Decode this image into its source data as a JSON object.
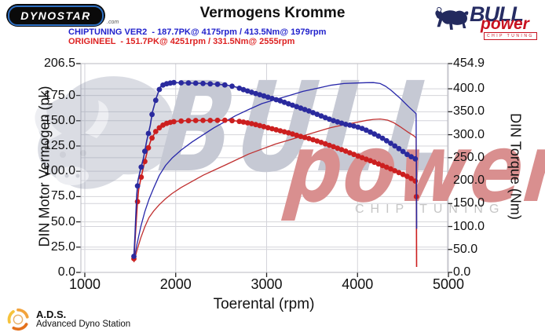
{
  "header": {
    "logo_text": "DYNOSTAR",
    "logo_suffix": ".com",
    "title": "Vermogens Kromme",
    "tuned_line": "CHIPTUNING VER2  - 187.7PK@ 4175rpm / 413.5Nm@ 1979rpm",
    "stock_line": "ORIGINEEL  - 151.7PK@ 4251rpm / 331.5Nm@ 2555rpm",
    "brand": {
      "name": "BULL",
      "sub": "power",
      "tagline": "CHIP TUNING"
    }
  },
  "watermark": {
    "word1": "BULL",
    "word2": "power",
    "word3": "CHIP TUNING"
  },
  "footer": {
    "abbr": "A.D.S.",
    "name": "Advanced Dyno Station"
  },
  "colors": {
    "header_blue": "#2222cc",
    "header_red": "#dd2222",
    "curve_blue": "#2a2a9e",
    "curve_red": "#cc1f1f",
    "grid": "#d4d4da",
    "plot_border": "#b8b8c0",
    "tick": "#222222"
  },
  "peaks": {
    "chiptuning": {
      "pk": 187.7,
      "pk_rpm": 4175,
      "nm": 413.5,
      "nm_rpm": 1979
    },
    "origineel": {
      "pk": 151.7,
      "pk_rpm": 4251,
      "nm": 331.5,
      "nm_rpm": 2555
    }
  },
  "chart_data": {
    "type": "line",
    "title": "Vermogens Kromme",
    "x_axis": {
      "label": "Toerental (rpm)",
      "ticks": [
        1000,
        2000,
        3000,
        4000,
        5000
      ],
      "min": 957,
      "max": 4991
    },
    "left_axis": {
      "label": "DIN Motor Vermogen (pk)",
      "ticks": [
        0.0,
        25.0,
        50.0,
        75.0,
        100.0,
        125.0,
        150.0,
        175.0,
        206.5
      ],
      "min": 0,
      "max": 206.5
    },
    "right_axis": {
      "label": "DIN Torque (Nm)",
      "ticks": [
        0.0,
        50.0,
        100.0,
        150.0,
        200.0,
        250.0,
        300.0,
        350.0,
        400.0,
        454.9
      ],
      "min": 0,
      "max": 454.9
    },
    "grid": true,
    "series": [
      {
        "name": "origineel_power",
        "axis": "left",
        "color": "#c03030",
        "width": 1.3,
        "markers": false,
        "points": [
          [
            1540,
            10
          ],
          [
            1575,
            22
          ],
          [
            1615,
            34
          ],
          [
            1660,
            45
          ],
          [
            1705,
            54
          ],
          [
            1760,
            61
          ],
          [
            1820,
            67
          ],
          [
            1890,
            73
          ],
          [
            1960,
            78
          ],
          [
            2060,
            84
          ],
          [
            2180,
            90
          ],
          [
            2300,
            96
          ],
          [
            2420,
            101
          ],
          [
            2540,
            106
          ],
          [
            2660,
            111
          ],
          [
            2800,
            117
          ],
          [
            2950,
            122
          ],
          [
            3100,
            127
          ],
          [
            3250,
            131
          ],
          [
            3400,
            135
          ],
          [
            3550,
            139
          ],
          [
            3700,
            143
          ],
          [
            3850,
            146
          ],
          [
            4000,
            148.6
          ],
          [
            4100,
            150.4
          ],
          [
            4175,
            151.3
          ],
          [
            4251,
            151.7
          ],
          [
            4330,
            150.6
          ],
          [
            4400,
            148
          ],
          [
            4470,
            144
          ],
          [
            4550,
            139
          ],
          [
            4620,
            135
          ],
          [
            4645,
            133
          ],
          [
            4648,
            60
          ]
        ]
      },
      {
        "name": "chiptuning_power",
        "axis": "left",
        "color": "#2828aa",
        "width": 1.3,
        "markers": false,
        "points": [
          [
            1540,
            12
          ],
          [
            1575,
            28
          ],
          [
            1615,
            45
          ],
          [
            1660,
            60
          ],
          [
            1705,
            72
          ],
          [
            1760,
            84
          ],
          [
            1820,
            96
          ],
          [
            1890,
            106
          ],
          [
            1960,
            113
          ],
          [
            2060,
            121
          ],
          [
            2180,
            129
          ],
          [
            2300,
            136
          ],
          [
            2420,
            143
          ],
          [
            2540,
            149
          ],
          [
            2660,
            155
          ],
          [
            2800,
            161
          ],
          [
            2950,
            167
          ],
          [
            3100,
            171
          ],
          [
            3250,
            175
          ],
          [
            3400,
            179
          ],
          [
            3550,
            182
          ],
          [
            3700,
            185
          ],
          [
            3850,
            186.8
          ],
          [
            4000,
            187.3
          ],
          [
            4100,
            187.6
          ],
          [
            4175,
            187.7
          ],
          [
            4250,
            186.8
          ],
          [
            4310,
            184
          ],
          [
            4370,
            180
          ],
          [
            4460,
            173
          ],
          [
            4560,
            164
          ],
          [
            4620,
            159
          ],
          [
            4645,
            157
          ],
          [
            4648,
            42
          ]
        ]
      },
      {
        "name": "origineel_torque",
        "axis": "right",
        "color": "#cc1f1f",
        "width": 1.6,
        "markers": true,
        "marker_stop": 4645,
        "extra_markers": [
          [
            4647,
            165
          ]
        ],
        "points": [
          [
            1540,
            30
          ],
          [
            1553,
            70
          ],
          [
            1565,
            110
          ],
          [
            1578,
            150
          ],
          [
            1592,
            180
          ],
          [
            1615,
            203
          ],
          [
            1648,
            232
          ],
          [
            1685,
            262
          ],
          [
            1725,
            287
          ],
          [
            1775,
            306
          ],
          [
            1840,
            319
          ],
          [
            1915,
            326
          ],
          [
            2000,
            329
          ],
          [
            2120,
            330.5
          ],
          [
            2260,
            331
          ],
          [
            2400,
            331
          ],
          [
            2555,
            331.5
          ],
          [
            2660,
            330
          ],
          [
            2760,
            327
          ],
          [
            2860,
            323
          ],
          [
            2960,
            318
          ],
          [
            3060,
            313
          ],
          [
            3160,
            308
          ],
          [
            3260,
            303
          ],
          [
            3360,
            297
          ],
          [
            3460,
            292
          ],
          [
            3560,
            286
          ],
          [
            3660,
            279
          ],
          [
            3760,
            272
          ],
          [
            3860,
            265
          ],
          [
            3960,
            257
          ],
          [
            4060,
            249
          ],
          [
            4160,
            242
          ],
          [
            4260,
            234
          ],
          [
            4360,
            226
          ],
          [
            4460,
            217
          ],
          [
            4560,
            208
          ],
          [
            4630,
            200
          ],
          [
            4645,
            197
          ],
          [
            4647,
            165
          ],
          [
            4650,
            12
          ]
        ]
      },
      {
        "name": "chiptuning_torque",
        "axis": "right",
        "color": "#2a2a9e",
        "width": 1.6,
        "markers": true,
        "marker_stop": 4642,
        "extra_markers": [],
        "points": [
          [
            1540,
            35
          ],
          [
            1552,
            80
          ],
          [
            1562,
            125
          ],
          [
            1572,
            170
          ],
          [
            1585,
            200
          ],
          [
            1610,
            222
          ],
          [
            1645,
            248
          ],
          [
            1682,
            287
          ],
          [
            1720,
            320
          ],
          [
            1745,
            350
          ],
          [
            1790,
            382
          ],
          [
            1830,
            404
          ],
          [
            1875,
            410
          ],
          [
            1925,
            412
          ],
          [
            1979,
            413.5
          ],
          [
            2060,
            413
          ],
          [
            2160,
            412.5
          ],
          [
            2260,
            412
          ],
          [
            2360,
            411
          ],
          [
            2460,
            410
          ],
          [
            2560,
            408
          ],
          [
            2660,
            404
          ],
          [
            2760,
            397
          ],
          [
            2860,
            391
          ],
          [
            2960,
            385
          ],
          [
            3060,
            379
          ],
          [
            3160,
            373
          ],
          [
            3260,
            366
          ],
          [
            3360,
            359
          ],
          [
            3460,
            352
          ],
          [
            3560,
            344
          ],
          [
            3660,
            336
          ],
          [
            3760,
            329
          ],
          [
            3860,
            323
          ],
          [
            3960,
            319
          ],
          [
            4060,
            313
          ],
          [
            4160,
            304
          ],
          [
            4260,
            294
          ],
          [
            4360,
            282
          ],
          [
            4460,
            269
          ],
          [
            4560,
            255
          ],
          [
            4640,
            247
          ],
          [
            4648,
            246
          ],
          [
            4650,
            95
          ]
        ]
      }
    ]
  }
}
